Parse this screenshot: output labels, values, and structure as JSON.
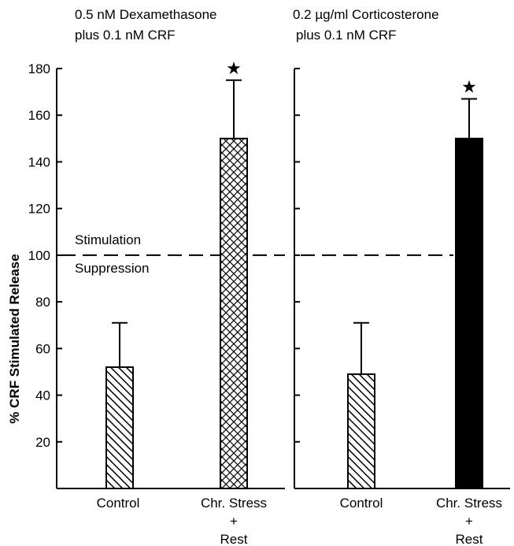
{
  "chart_data": [
    {
      "type": "bar",
      "title_lines": [
        "0.5 nM Dexamethasone",
        "plus 0.1 nM CRF"
      ],
      "ylabel": "% CRF Stimulated Release",
      "ylim": [
        0,
        180
      ],
      "yticks": [
        20,
        40,
        60,
        80,
        100,
        120,
        140,
        160,
        180
      ],
      "reference_line": {
        "value": 100,
        "label_above": "Stimulation",
        "label_below": "Suppression"
      },
      "categories": [
        {
          "lines": [
            "Control"
          ]
        },
        {
          "lines": [
            "Chr. Stress",
            "+",
            "Rest"
          ]
        }
      ],
      "values": [
        52,
        150
      ],
      "errors": [
        19,
        25
      ],
      "fills": [
        "hatch",
        "crosshatch"
      ],
      "significance": [
        "",
        "★"
      ]
    },
    {
      "type": "bar",
      "title_lines": [
        "0.2 µg/ml Corticosterone",
        "plus 0.1 nM CRF"
      ],
      "ylabel": "",
      "ylim": [
        0,
        180
      ],
      "yticks": [
        20,
        40,
        60,
        80,
        100,
        120,
        140,
        160,
        180
      ],
      "reference_line": {
        "value": 100,
        "label_above": "",
        "label_below": ""
      },
      "categories": [
        {
          "lines": [
            "Control"
          ]
        },
        {
          "lines": [
            "Chr. Stress",
            "+",
            "Rest"
          ]
        }
      ],
      "values": [
        49,
        150
      ],
      "errors": [
        22,
        17
      ],
      "fills": [
        "hatch",
        "solid"
      ],
      "significance": [
        "",
        "★"
      ]
    }
  ]
}
